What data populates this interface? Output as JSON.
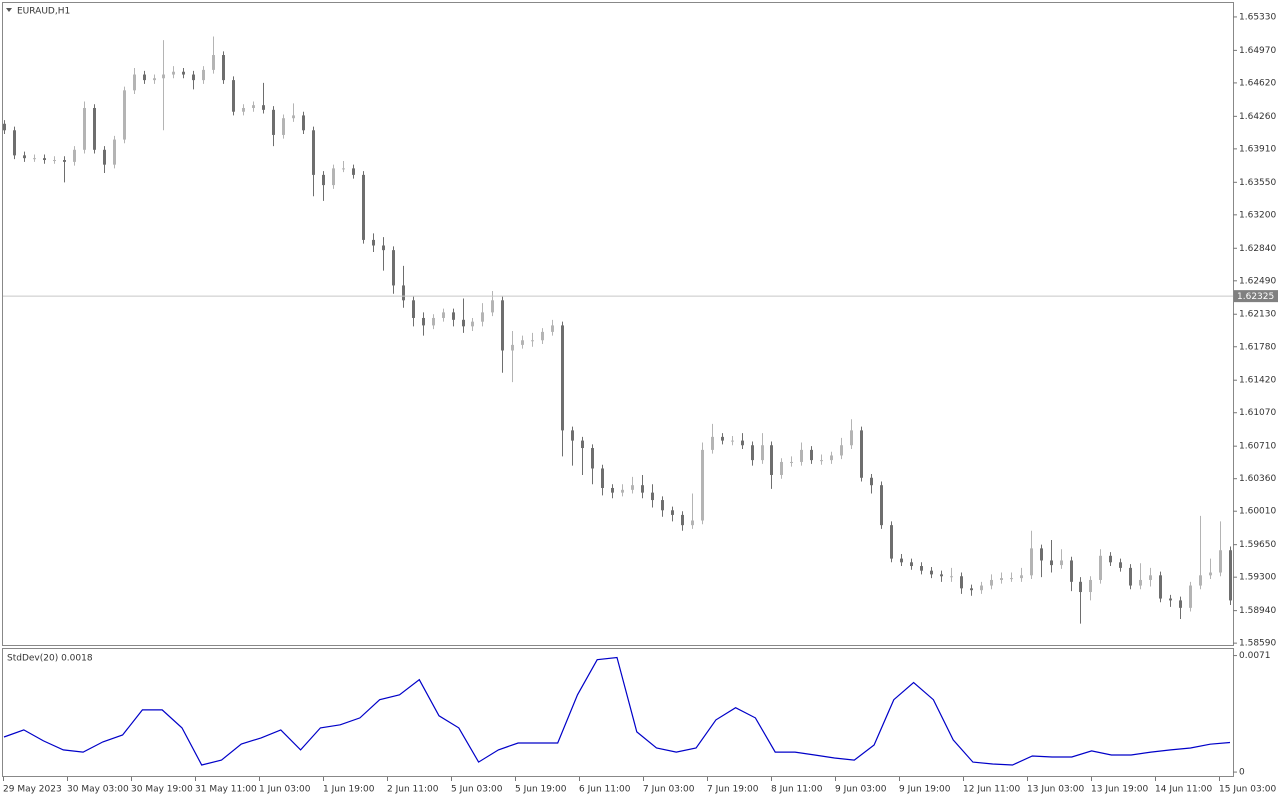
{
  "chart_data": [
    {
      "type": "candlestick",
      "title": "EURAUD,H1",
      "bull_color": "#b4b4b4",
      "bear_color": "#6e6e6e",
      "ylim": [
        1.5857,
        1.6548
      ],
      "yticks": [
        {
          "value": 1.6533,
          "label": "1.65330"
        },
        {
          "value": 1.6497,
          "label": "1.64970"
        },
        {
          "value": 1.6462,
          "label": "1.64620"
        },
        {
          "value": 1.6426,
          "label": "1.64260"
        },
        {
          "value": 1.6391,
          "label": "1.63910"
        },
        {
          "value": 1.6355,
          "label": "1.63550"
        },
        {
          "value": 1.632,
          "label": "1.63200"
        },
        {
          "value": 1.6284,
          "label": "1.62840"
        },
        {
          "value": 1.6249,
          "label": "1.62490"
        },
        {
          "value": 1.6213,
          "label": "1.62130"
        },
        {
          "value": 1.6178,
          "label": "1.61780"
        },
        {
          "value": 1.6142,
          "label": "1.61420"
        },
        {
          "value": 1.6107,
          "label": "1.61070"
        },
        {
          "value": 1.6071,
          "label": "1.60710"
        },
        {
          "value": 1.6036,
          "label": "1.60360"
        },
        {
          "value": 1.6001,
          "label": "1.60010"
        },
        {
          "value": 1.5965,
          "label": "1.59650"
        },
        {
          "value": 1.593,
          "label": "1.59300"
        },
        {
          "value": 1.5894,
          "label": "1.58940"
        },
        {
          "value": 1.5859,
          "label": "1.58590"
        }
      ],
      "current_price": 1.62325,
      "x_labels": [
        "29 May 2023",
        "30 May 03:00",
        "30 May 19:00",
        "31 May 11:00",
        "1 Jun 03:00",
        "1 Jun 19:00",
        "2 Jun 11:00",
        "5 Jun 03:00",
        "5 Jun 19:00",
        "6 Jun 11:00",
        "7 Jun 03:00",
        "7 Jun 19:00",
        "8 Jun 11:00",
        "9 Jun 03:00",
        "9 Jun 19:00",
        "12 Jun 11:00",
        "13 Jun 03:00",
        "13 Jun 19:00",
        "14 Jun 11:00",
        "15 Jun 03:00"
      ],
      "ohlc": [
        [
          1.6418,
          1.6422,
          1.6407,
          1.6411
        ],
        [
          1.6411,
          1.6415,
          1.638,
          1.6384
        ],
        [
          1.6384,
          1.6388,
          1.6377,
          1.6381
        ],
        [
          1.6381,
          1.6385,
          1.6377,
          1.6381
        ],
        [
          1.6381,
          1.6385,
          1.6375,
          1.6379
        ],
        [
          1.6379,
          1.6383,
          1.6375,
          1.6379
        ],
        [
          1.6379,
          1.6383,
          1.6355,
          1.6377
        ],
        [
          1.6377,
          1.6394,
          1.6373,
          1.639
        ],
        [
          1.639,
          1.6442,
          1.6386,
          1.6435
        ],
        [
          1.6435,
          1.6439,
          1.6386,
          1.639
        ],
        [
          1.639,
          1.6394,
          1.6365,
          1.6374
        ],
        [
          1.6374,
          1.6405,
          1.637,
          1.6401
        ],
        [
          1.6401,
          1.6458,
          1.6397,
          1.6454
        ],
        [
          1.6454,
          1.6478,
          1.645,
          1.6471
        ],
        [
          1.6471,
          1.6475,
          1.6461,
          1.6465
        ],
        [
          1.6465,
          1.6471,
          1.6461,
          1.6467
        ],
        [
          1.6467,
          1.6508,
          1.6411,
          1.6471
        ],
        [
          1.6471,
          1.648,
          1.6467,
          1.6474
        ],
        [
          1.6474,
          1.6478,
          1.6467,
          1.6471
        ],
        [
          1.6471,
          1.6475,
          1.6455,
          1.6465
        ],
        [
          1.6465,
          1.648,
          1.6461,
          1.6476
        ],
        [
          1.6476,
          1.6512,
          1.6472,
          1.6492
        ],
        [
          1.6492,
          1.6496,
          1.6461,
          1.6465
        ],
        [
          1.6465,
          1.6469,
          1.6427,
          1.6431
        ],
        [
          1.6431,
          1.6439,
          1.6427,
          1.6435
        ],
        [
          1.6435,
          1.6442,
          1.6431,
          1.6438
        ],
        [
          1.6438,
          1.6462,
          1.6429,
          1.6433
        ],
        [
          1.6433,
          1.6437,
          1.6394,
          1.6406
        ],
        [
          1.6406,
          1.6428,
          1.6402,
          1.6424
        ],
        [
          1.6424,
          1.644,
          1.642,
          1.6427
        ],
        [
          1.6427,
          1.6431,
          1.6407,
          1.6411
        ],
        [
          1.6411,
          1.6415,
          1.634,
          1.6363
        ],
        [
          1.6363,
          1.6367,
          1.6335,
          1.6352
        ],
        [
          1.6352,
          1.6374,
          1.6348,
          1.637
        ],
        [
          1.637,
          1.6378,
          1.6366,
          1.637
        ],
        [
          1.637,
          1.6374,
          1.6359,
          1.6363
        ],
        [
          1.6363,
          1.6367,
          1.6289,
          1.6293
        ],
        [
          1.6293,
          1.63,
          1.628,
          1.6287
        ],
        [
          1.6287,
          1.6296,
          1.626,
          1.6282
        ],
        [
          1.6282,
          1.6286,
          1.6235,
          1.6244
        ],
        [
          1.6244,
          1.6265,
          1.622,
          1.6228
        ],
        [
          1.6228,
          1.6232,
          1.62,
          1.6209
        ],
        [
          1.6209,
          1.6215,
          1.619,
          1.6201
        ],
        [
          1.6201,
          1.6213,
          1.6197,
          1.6209
        ],
        [
          1.6209,
          1.6219,
          1.6205,
          1.6215
        ],
        [
          1.6215,
          1.6219,
          1.62,
          1.6207
        ],
        [
          1.6207,
          1.623,
          1.6193,
          1.62
        ],
        [
          1.62,
          1.6209,
          1.6195,
          1.6205
        ],
        [
          1.6205,
          1.6225,
          1.62,
          1.6215
        ],
        [
          1.6215,
          1.6238,
          1.6211,
          1.6228
        ],
        [
          1.6228,
          1.6232,
          1.615,
          1.6174
        ],
        [
          1.6174,
          1.6195,
          1.614,
          1.618
        ],
        [
          1.618,
          1.619,
          1.6176,
          1.6185
        ],
        [
          1.6185,
          1.6193,
          1.6178,
          1.6185
        ],
        [
          1.6185,
          1.6198,
          1.6181,
          1.6194
        ],
        [
          1.6194,
          1.6207,
          1.619,
          1.6201
        ],
        [
          1.6201,
          1.6205,
          1.606,
          1.6088
        ],
        [
          1.6088,
          1.6092,
          1.605,
          1.6077
        ],
        [
          1.6077,
          1.6081,
          1.604,
          1.6069
        ],
        [
          1.6069,
          1.6073,
          1.603,
          1.6047
        ],
        [
          1.6047,
          1.6051,
          1.6018,
          1.6026
        ],
        [
          1.6026,
          1.603,
          1.6015,
          1.6021
        ],
        [
          1.6021,
          1.603,
          1.6017,
          1.6024
        ],
        [
          1.6024,
          1.6038,
          1.602,
          1.6029
        ],
        [
          1.6029,
          1.604,
          1.6015,
          1.6021
        ],
        [
          1.6021,
          1.603,
          1.6005,
          1.6013
        ],
        [
          1.6013,
          1.6017,
          1.5995,
          1.6002
        ],
        [
          1.6002,
          1.6006,
          1.599,
          1.5997
        ],
        [
          1.5997,
          1.6001,
          1.598,
          1.5986
        ],
        [
          1.5986,
          1.602,
          1.5982,
          1.5991
        ],
        [
          1.5991,
          1.6075,
          1.5987,
          1.6067
        ],
        [
          1.6067,
          1.6095,
          1.6063,
          1.6081
        ],
        [
          1.6081,
          1.6085,
          1.6073,
          1.6077
        ],
        [
          1.6077,
          1.6082,
          1.6072,
          1.6077
        ],
        [
          1.6077,
          1.6085,
          1.6068,
          1.6072
        ],
        [
          1.6072,
          1.6076,
          1.605,
          1.6056
        ],
        [
          1.6056,
          1.6085,
          1.6052,
          1.6072
        ],
        [
          1.6072,
          1.6076,
          1.6025,
          1.604
        ],
        [
          1.604,
          1.6058,
          1.6036,
          1.6054
        ],
        [
          1.6054,
          1.606,
          1.6049,
          1.6054
        ],
        [
          1.6054,
          1.6075,
          1.605,
          1.6067
        ],
        [
          1.6067,
          1.6071,
          1.6052,
          1.6056
        ],
        [
          1.6056,
          1.6062,
          1.6051,
          1.6056
        ],
        [
          1.6056,
          1.6065,
          1.6052,
          1.6061
        ],
        [
          1.6061,
          1.608,
          1.6057,
          1.6072
        ],
        [
          1.6072,
          1.61,
          1.6068,
          1.6088
        ],
        [
          1.6088,
          1.6092,
          1.6033,
          1.6037
        ],
        [
          1.6037,
          1.6041,
          1.602,
          1.6029
        ],
        [
          1.6029,
          1.6033,
          1.5982,
          1.5986
        ],
        [
          1.5986,
          1.599,
          1.5946,
          1.595
        ],
        [
          1.595,
          1.5955,
          1.5942,
          1.5946
        ],
        [
          1.5946,
          1.595,
          1.5938,
          1.5942
        ],
        [
          1.5942,
          1.5946,
          1.5933,
          1.5937
        ],
        [
          1.5937,
          1.5941,
          1.5929,
          1.5933
        ],
        [
          1.5933,
          1.5937,
          1.5925,
          1.5931
        ],
        [
          1.5931,
          1.594,
          1.5925,
          1.5931
        ],
        [
          1.5931,
          1.5935,
          1.5912,
          1.5918
        ],
        [
          1.5918,
          1.5922,
          1.591,
          1.5916
        ],
        [
          1.5916,
          1.5925,
          1.5912,
          1.5921
        ],
        [
          1.5921,
          1.5933,
          1.5917,
          1.5927
        ],
        [
          1.5927,
          1.5935,
          1.5923,
          1.5929
        ],
        [
          1.5929,
          1.5935,
          1.5925,
          1.5929
        ],
        [
          1.5929,
          1.594,
          1.5925,
          1.5932
        ],
        [
          1.5932,
          1.598,
          1.5928,
          1.5961
        ],
        [
          1.5961,
          1.5965,
          1.593,
          1.5948
        ],
        [
          1.5948,
          1.597,
          1.5935,
          1.5943
        ],
        [
          1.5943,
          1.596,
          1.5939,
          1.5948
        ],
        [
          1.5948,
          1.5952,
          1.5915,
          1.5925
        ],
        [
          1.5925,
          1.593,
          1.588,
          1.5914
        ],
        [
          1.5914,
          1.5931,
          1.5905,
          1.5927
        ],
        [
          1.5927,
          1.596,
          1.5923,
          1.5953
        ],
        [
          1.5953,
          1.5957,
          1.5942,
          1.5946
        ],
        [
          1.5946,
          1.595,
          1.5936,
          1.594
        ],
        [
          1.594,
          1.5944,
          1.5917,
          1.5921
        ],
        [
          1.5921,
          1.5945,
          1.5917,
          1.5927
        ],
        [
          1.5927,
          1.594,
          1.592,
          1.5932
        ],
        [
          1.5932,
          1.5936,
          1.5903,
          1.5907
        ],
        [
          1.5907,
          1.5911,
          1.5898,
          1.5905
        ],
        [
          1.5905,
          1.5909,
          1.5885,
          1.5897
        ],
        [
          1.5897,
          1.5925,
          1.5893,
          1.5921
        ],
        [
          1.5921,
          1.5996,
          1.5917,
          1.5932
        ],
        [
          1.5932,
          1.595,
          1.5928,
          1.5935
        ],
        [
          1.5935,
          1.599,
          1.5931,
          1.5959
        ],
        [
          1.5959,
          1.5963,
          1.59,
          1.5905
        ]
      ]
    },
    {
      "type": "line",
      "title": "StdDev(20) 0.0018",
      "color": "#0000c8",
      "ylim": [
        -0.0003,
        0.0075
      ],
      "yticks": [
        0.0071,
        0
      ],
      "values": [
        0.00214,
        0.00257,
        0.0019,
        0.00135,
        0.00122,
        0.00184,
        0.00226,
        0.00379,
        0.00379,
        0.00269,
        0.00043,
        0.00073,
        0.00171,
        0.00208,
        0.00257,
        0.00135,
        0.00269,
        0.00288,
        0.0033,
        0.00441,
        0.00471,
        0.00563,
        0.00343,
        0.00269,
        0.00061,
        0.00135,
        0.00177,
        0.00177,
        0.00177,
        0.00471,
        0.00685,
        0.00698,
        0.00245,
        0.00147,
        0.00122,
        0.00147,
        0.00318,
        0.00392,
        0.0033,
        0.00122,
        0.00122,
        0.00104,
        0.00086,
        0.00073,
        0.00165,
        0.00441,
        0.00545,
        0.00441,
        0.00196,
        0.00061,
        0.00049,
        0.00043,
        0.00098,
        0.00092,
        0.00092,
        0.00129,
        0.00104,
        0.00104,
        0.00122,
        0.00135,
        0.00147,
        0.0017,
        0.0018
      ]
    }
  ]
}
